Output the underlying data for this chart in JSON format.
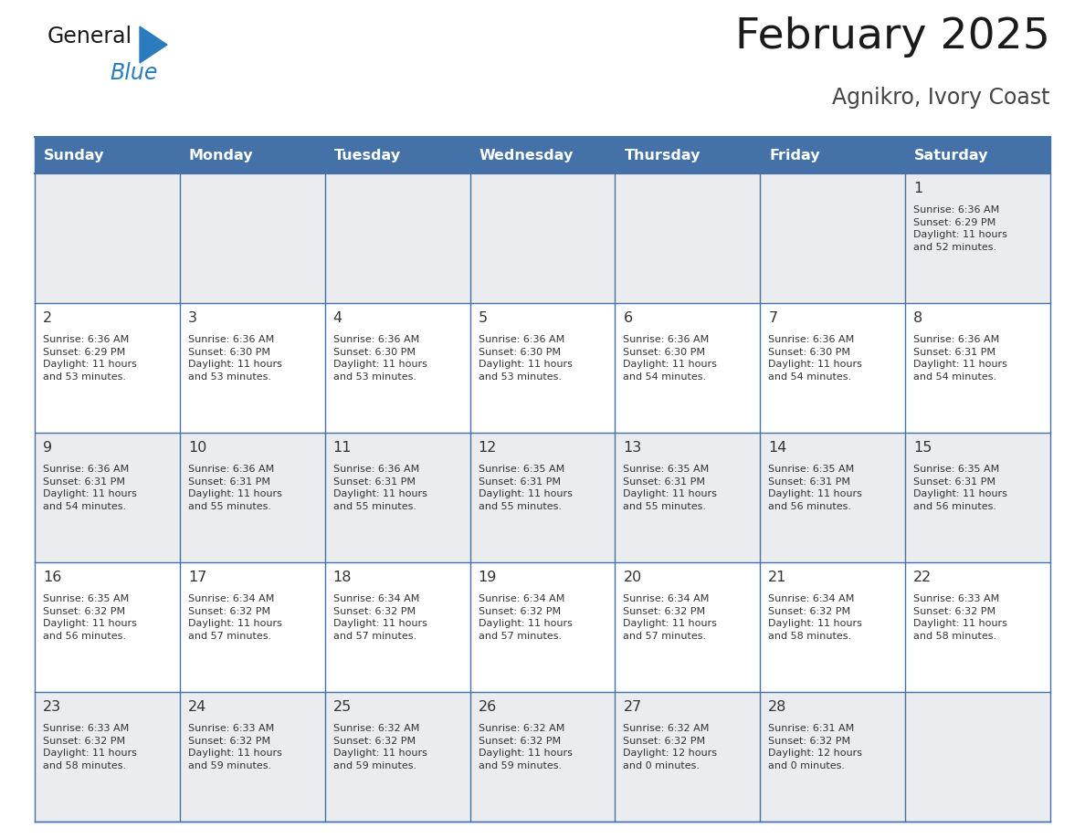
{
  "title": "February 2025",
  "subtitle": "Agnikro, Ivory Coast",
  "header_bg": "#4472a8",
  "header_text_color": "#ffffff",
  "cell_bg_light": "#eaecf0",
  "cell_bg_white": "#ffffff",
  "border_color": "#4472a8",
  "text_color": "#333333",
  "day_number_color": "#333333",
  "logo_text_color": "#1a1a1a",
  "logo_blue_color": "#2b7bbf",
  "logo_triangle_color": "#2b7bbf",
  "days_of_week": [
    "Sunday",
    "Monday",
    "Tuesday",
    "Wednesday",
    "Thursday",
    "Friday",
    "Saturday"
  ],
  "weeks": [
    [
      {
        "day": null,
        "info": null
      },
      {
        "day": null,
        "info": null
      },
      {
        "day": null,
        "info": null
      },
      {
        "day": null,
        "info": null
      },
      {
        "day": null,
        "info": null
      },
      {
        "day": null,
        "info": null
      },
      {
        "day": 1,
        "info": "Sunrise: 6:36 AM\nSunset: 6:29 PM\nDaylight: 11 hours\nand 52 minutes."
      }
    ],
    [
      {
        "day": 2,
        "info": "Sunrise: 6:36 AM\nSunset: 6:29 PM\nDaylight: 11 hours\nand 53 minutes."
      },
      {
        "day": 3,
        "info": "Sunrise: 6:36 AM\nSunset: 6:30 PM\nDaylight: 11 hours\nand 53 minutes."
      },
      {
        "day": 4,
        "info": "Sunrise: 6:36 AM\nSunset: 6:30 PM\nDaylight: 11 hours\nand 53 minutes."
      },
      {
        "day": 5,
        "info": "Sunrise: 6:36 AM\nSunset: 6:30 PM\nDaylight: 11 hours\nand 53 minutes."
      },
      {
        "day": 6,
        "info": "Sunrise: 6:36 AM\nSunset: 6:30 PM\nDaylight: 11 hours\nand 54 minutes."
      },
      {
        "day": 7,
        "info": "Sunrise: 6:36 AM\nSunset: 6:30 PM\nDaylight: 11 hours\nand 54 minutes."
      },
      {
        "day": 8,
        "info": "Sunrise: 6:36 AM\nSunset: 6:31 PM\nDaylight: 11 hours\nand 54 minutes."
      }
    ],
    [
      {
        "day": 9,
        "info": "Sunrise: 6:36 AM\nSunset: 6:31 PM\nDaylight: 11 hours\nand 54 minutes."
      },
      {
        "day": 10,
        "info": "Sunrise: 6:36 AM\nSunset: 6:31 PM\nDaylight: 11 hours\nand 55 minutes."
      },
      {
        "day": 11,
        "info": "Sunrise: 6:36 AM\nSunset: 6:31 PM\nDaylight: 11 hours\nand 55 minutes."
      },
      {
        "day": 12,
        "info": "Sunrise: 6:35 AM\nSunset: 6:31 PM\nDaylight: 11 hours\nand 55 minutes."
      },
      {
        "day": 13,
        "info": "Sunrise: 6:35 AM\nSunset: 6:31 PM\nDaylight: 11 hours\nand 55 minutes."
      },
      {
        "day": 14,
        "info": "Sunrise: 6:35 AM\nSunset: 6:31 PM\nDaylight: 11 hours\nand 56 minutes."
      },
      {
        "day": 15,
        "info": "Sunrise: 6:35 AM\nSunset: 6:31 PM\nDaylight: 11 hours\nand 56 minutes."
      }
    ],
    [
      {
        "day": 16,
        "info": "Sunrise: 6:35 AM\nSunset: 6:32 PM\nDaylight: 11 hours\nand 56 minutes."
      },
      {
        "day": 17,
        "info": "Sunrise: 6:34 AM\nSunset: 6:32 PM\nDaylight: 11 hours\nand 57 minutes."
      },
      {
        "day": 18,
        "info": "Sunrise: 6:34 AM\nSunset: 6:32 PM\nDaylight: 11 hours\nand 57 minutes."
      },
      {
        "day": 19,
        "info": "Sunrise: 6:34 AM\nSunset: 6:32 PM\nDaylight: 11 hours\nand 57 minutes."
      },
      {
        "day": 20,
        "info": "Sunrise: 6:34 AM\nSunset: 6:32 PM\nDaylight: 11 hours\nand 57 minutes."
      },
      {
        "day": 21,
        "info": "Sunrise: 6:34 AM\nSunset: 6:32 PM\nDaylight: 11 hours\nand 58 minutes."
      },
      {
        "day": 22,
        "info": "Sunrise: 6:33 AM\nSunset: 6:32 PM\nDaylight: 11 hours\nand 58 minutes."
      }
    ],
    [
      {
        "day": 23,
        "info": "Sunrise: 6:33 AM\nSunset: 6:32 PM\nDaylight: 11 hours\nand 58 minutes."
      },
      {
        "day": 24,
        "info": "Sunrise: 6:33 AM\nSunset: 6:32 PM\nDaylight: 11 hours\nand 59 minutes."
      },
      {
        "day": 25,
        "info": "Sunrise: 6:32 AM\nSunset: 6:32 PM\nDaylight: 11 hours\nand 59 minutes."
      },
      {
        "day": 26,
        "info": "Sunrise: 6:32 AM\nSunset: 6:32 PM\nDaylight: 11 hours\nand 59 minutes."
      },
      {
        "day": 27,
        "info": "Sunrise: 6:32 AM\nSunset: 6:32 PM\nDaylight: 12 hours\nand 0 minutes."
      },
      {
        "day": 28,
        "info": "Sunrise: 6:31 AM\nSunset: 6:32 PM\nDaylight: 12 hours\nand 0 minutes."
      },
      {
        "day": null,
        "info": null
      }
    ]
  ]
}
